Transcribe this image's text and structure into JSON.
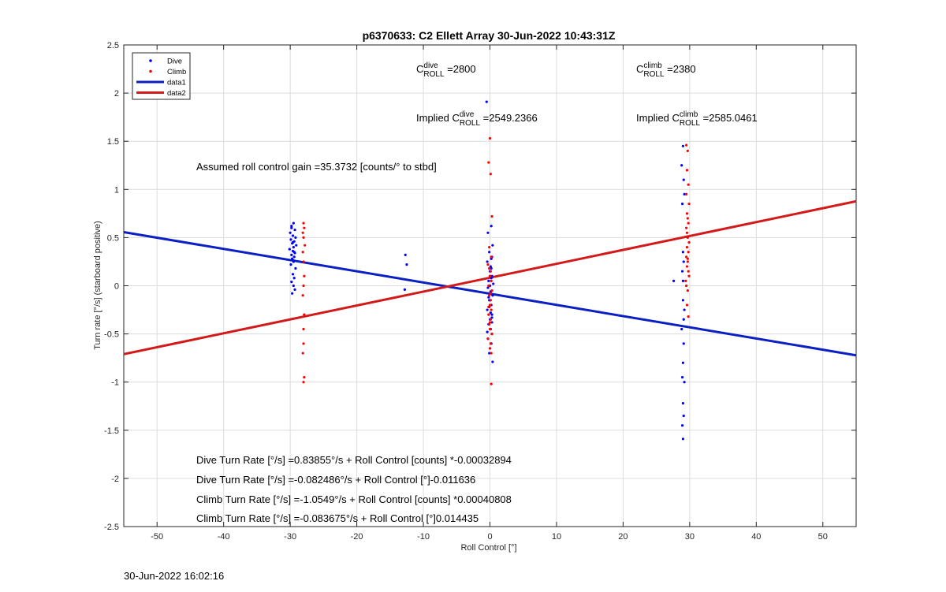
{
  "chart_data": {
    "type": "scatter",
    "title": "p6370633: C2 Ellett Array 30-Jun-2022 10:43:31Z",
    "xlabel": "Roll Control [°]",
    "ylabel": "Turn rate [°/s] (starboard positive)",
    "xlim": [
      -55,
      55
    ],
    "ylim": [
      -2.5,
      2.5
    ],
    "xticks": [
      -50,
      -40,
      -30,
      -20,
      -10,
      0,
      10,
      20,
      30,
      40,
      50
    ],
    "yticks": [
      -2.5,
      -2,
      -1.5,
      -1,
      -0.5,
      0,
      0.5,
      1,
      1.5,
      2,
      2.5
    ],
    "grid": true,
    "legend_position": "top-left",
    "legend": [
      "Dive",
      "Climb",
      "data1",
      "data2"
    ],
    "colors": {
      "dive": "#0000ff",
      "climb": "#ff0000",
      "data1": "#0a1fc4",
      "data2": "#d31a1a"
    },
    "series": [
      {
        "name": "Dive",
        "style": "markers",
        "x": [
          -29.5,
          -29.8,
          -29.3,
          -30.0,
          -29.6,
          -29.2,
          -29.9,
          -29.4,
          -29.7,
          -29.1,
          -29.5,
          -30.1,
          -29.6,
          -29.3,
          -29.8,
          -29.4,
          -29.7,
          -29.5,
          -29.9,
          -29.2,
          -29.6,
          -29.4,
          -29.8,
          -29.5,
          -29.3,
          -29.7,
          -29.6,
          -29.4,
          -29.5,
          -29.8,
          -12.7,
          -12.5,
          -12.8,
          -0.5,
          0.2,
          -0.3,
          0.4,
          -0.1,
          0.3,
          -0.4,
          0.1,
          0.0,
          0.3,
          -0.2,
          0.5,
          -0.3,
          0.1,
          0.4,
          -0.1,
          0.2,
          -0.4,
          0.3,
          0.0,
          -0.2,
          0.1,
          0.3,
          -0.3,
          0.2,
          0.0,
          -0.1,
          0.4,
          0.2,
          -0.2,
          0.1,
          0.3,
          -0.4,
          0.2,
          0.0,
          0.1,
          -0.1,
          0.3,
          0.2,
          29.0,
          28.8,
          29.1,
          29.2,
          28.9,
          29.0,
          29.1,
          28.9,
          29.0,
          29.2,
          28.8,
          29.1,
          29.0,
          28.9,
          29.2,
          29.0,
          29.1,
          28.9,
          29.0,
          27.6,
          29.0,
          29.1
        ],
        "y": [
          0.65,
          0.62,
          0.58,
          0.55,
          0.52,
          0.5,
          0.48,
          0.46,
          0.44,
          0.42,
          0.4,
          0.38,
          0.36,
          0.34,
          0.32,
          0.3,
          0.28,
          0.26,
          0.22,
          0.18,
          0.12,
          0.08,
          0.04,
          0.0,
          -0.04,
          -0.08,
          0.45,
          0.35,
          0.25,
          0.6,
          0.32,
          0.22,
          -0.04,
          1.91,
          0.62,
          0.55,
          0.42,
          0.35,
          0.3,
          0.25,
          0.2,
          0.15,
          0.1,
          0.05,
          0.02,
          -0.02,
          -0.06,
          -0.1,
          -0.15,
          -0.2,
          -0.25,
          -0.3,
          -0.35,
          -0.4,
          -0.45,
          -0.5,
          -0.55,
          -0.6,
          -0.65,
          -0.7,
          -0.79,
          0.08,
          -0.12,
          -0.28,
          -0.38,
          -0.48,
          0.18,
          0.0,
          -0.08,
          -0.22,
          -0.33,
          0.28,
          1.45,
          1.25,
          1.1,
          0.95,
          0.85,
          0.35,
          0.25,
          0.15,
          0.05,
          -0.25,
          -0.45,
          -0.6,
          -0.8,
          -0.95,
          -1.0,
          -1.22,
          -1.35,
          -1.45,
          -1.59,
          0.05,
          -0.15,
          -0.35
        ]
      },
      {
        "name": "Climb",
        "style": "markers",
        "x": [
          -28.0,
          -27.9,
          -28.1,
          -28.0,
          -27.8,
          -28.1,
          -28.0,
          -27.9,
          -28.0,
          -28.1,
          -27.9,
          -28.0,
          -28.0,
          -28.1,
          -27.9,
          -28.0,
          0.0,
          -0.2,
          0.1,
          0.3,
          -0.1,
          0.2,
          -0.3,
          0.1,
          0.0,
          0.2,
          -0.2,
          0.3,
          -0.1,
          0.1,
          0.0,
          0.2,
          -0.2,
          0.1,
          -0.1,
          0.0,
          0.3,
          -0.3,
          0.1,
          0.0,
          0.2,
          -0.1,
          0.1,
          -0.2,
          0.0,
          0.2,
          29.5,
          29.7,
          29.6,
          29.8,
          29.5,
          29.9,
          29.6,
          29.7,
          29.8,
          29.5,
          29.6,
          29.7,
          29.9,
          29.6,
          29.8,
          29.5,
          29.7,
          29.6,
          29.8,
          29.9,
          29.4,
          29.7,
          29.6,
          29.8,
          29.5,
          29.7
        ],
        "y": [
          0.65,
          0.6,
          0.55,
          0.5,
          0.42,
          0.35,
          0.25,
          0.1,
          0.0,
          -0.1,
          -0.3,
          -0.45,
          -0.6,
          -0.7,
          -0.95,
          -1.0,
          1.53,
          1.28,
          1.16,
          0.72,
          0.4,
          0.3,
          0.22,
          0.15,
          0.1,
          0.05,
          0.0,
          -0.05,
          -0.1,
          -0.15,
          -0.2,
          -0.25,
          -0.3,
          -0.35,
          -0.4,
          -0.45,
          -0.5,
          -0.55,
          -0.6,
          -0.65,
          -0.7,
          0.18,
          -0.08,
          -0.22,
          -0.38,
          -1.02,
          1.46,
          1.4,
          1.2,
          1.05,
          0.95,
          0.85,
          0.75,
          0.7,
          0.65,
          0.6,
          0.55,
          0.5,
          0.45,
          0.4,
          0.35,
          0.3,
          0.25,
          0.2,
          0.15,
          0.1,
          0.05,
          -0.05,
          -0.2,
          -0.32,
          0.0,
          0.28
        ]
      },
      {
        "name": "data1",
        "style": "line",
        "x": [
          -55,
          55
        ],
        "y": [
          0.557,
          -0.722
        ]
      },
      {
        "name": "data2",
        "style": "line",
        "x": [
          -55,
          55
        ],
        "y": [
          -0.71,
          0.877
        ]
      }
    ],
    "annotations": [
      {
        "id": "c-dive",
        "pre": "C",
        "sup": "dive",
        "sub": "ROLL",
        "post": " =2800"
      },
      {
        "id": "c-climb",
        "pre": "C",
        "sup": "climb",
        "sub": "ROLL",
        "post": " =2380"
      },
      {
        "id": "implied-dive",
        "pre": "Implied C",
        "sup": "dive",
        "sub": "ROLL",
        "post": " =2549.2366"
      },
      {
        "id": "implied-climb",
        "pre": "Implied C",
        "sup": "climb",
        "sub": "ROLL",
        "post": " =2585.0461"
      },
      {
        "id": "gain",
        "text": "Assumed roll control gain =35.3732 [counts/° to stbd]"
      },
      {
        "id": "eq1",
        "text": "Dive Turn Rate [°/s] =0.83855°/s + Roll Control [counts] *-0.00032894"
      },
      {
        "id": "eq2",
        "text": "Dive Turn Rate [°/s] =-0.082486°/s + Roll Control [°]-0.011636"
      },
      {
        "id": "eq3",
        "text": "Climb Turn Rate [°/s] =-1.0549°/s + Roll Control [counts] *0.00040808"
      },
      {
        "id": "eq4",
        "text": "Climb Turn Rate [°/s] =-0.083675°/s + Roll Control [°]0.014435"
      }
    ]
  },
  "footer_timestamp": "30-Jun-2022 16:02:16"
}
